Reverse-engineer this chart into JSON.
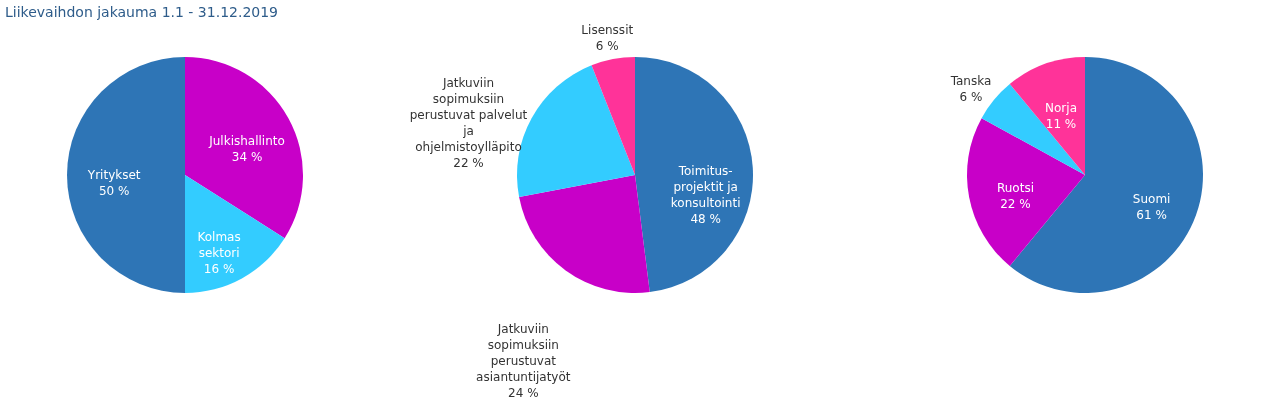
{
  "chart_data": [
    {
      "type": "pie",
      "title": "Liikevaihdon jakauma 1.1 - 31.12.2019",
      "categories": [
        "Julkishallinto",
        "Kolmas sektori",
        "Yritykset"
      ],
      "values": [
        34,
        16,
        50
      ],
      "colors": [
        "#c800c8",
        "#33ccff",
        "#2e75b6"
      ],
      "value_labels": [
        "34 %",
        "16 %",
        "50 %"
      ]
    },
    {
      "type": "pie",
      "categories": [
        "Toimitus-projektit ja konsultointi",
        "Jatkuviin sopimuksiin perustuvat asiantuntijatyöt",
        "Jatkuviin sopimuksiin perustuvat palvelut ja ohjelmistoylläpito",
        "Lisenssit"
      ],
      "values": [
        48,
        24,
        22,
        6
      ],
      "colors": [
        "#2e75b6",
        "#c800c8",
        "#33ccff",
        "#ff3399"
      ],
      "value_labels": [
        "48 %",
        "24 %",
        "22 %",
        "6 %"
      ]
    },
    {
      "type": "pie",
      "categories": [
        "Suomi",
        "Ruotsi",
        "Tanska",
        "Norja"
      ],
      "values": [
        61,
        22,
        6,
        11
      ],
      "colors": [
        "#2e75b6",
        "#c800c8",
        "#33ccff",
        "#ff3399"
      ],
      "value_labels": [
        "61 %",
        "22 %",
        "6 %",
        "11 %"
      ]
    }
  ]
}
